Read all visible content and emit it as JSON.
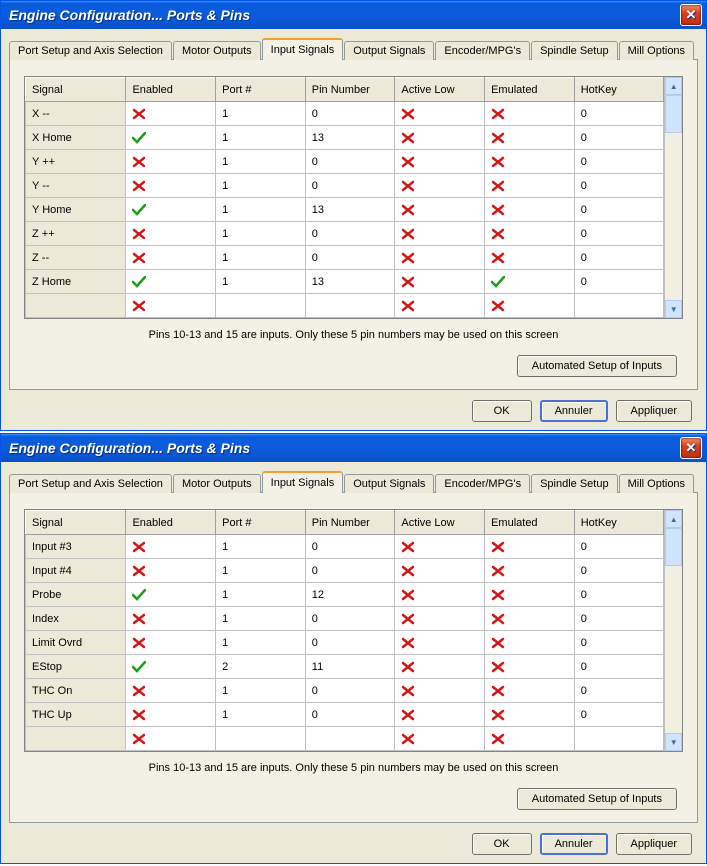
{
  "title": "Engine Configuration... Ports & Pins",
  "tabs": [
    "Port Setup and Axis Selection",
    "Motor Outputs",
    "Input Signals",
    "Output Signals",
    "Encoder/MPG's",
    "Spindle Setup",
    "Mill Options"
  ],
  "activeTab": 2,
  "columns": [
    "Signal",
    "Enabled",
    "Port #",
    "Pin Number",
    "Active Low",
    "Emulated",
    "HotKey"
  ],
  "hint": "Pins 10-13 and 15 are inputs. Only these 5 pin numbers may be used on this screen",
  "autoBtn": "Automated Setup of Inputs",
  "buttons": {
    "ok": "OK",
    "cancel": "Annuler",
    "apply": "Appliquer"
  },
  "colors": {
    "x": "#d01818",
    "check": "#1aa01a"
  },
  "windows": [
    {
      "defaultBtn": "cancel",
      "rows": [
        {
          "signal": "X --",
          "enabled": "x",
          "port": "1",
          "pin": "0",
          "activelow": "x",
          "emulated": "x",
          "hotkey": "0"
        },
        {
          "signal": "X Home",
          "enabled": "check",
          "port": "1",
          "pin": "13",
          "activelow": "x",
          "emulated": "x",
          "hotkey": "0"
        },
        {
          "signal": "Y ++",
          "enabled": "x",
          "port": "1",
          "pin": "0",
          "activelow": "x",
          "emulated": "x",
          "hotkey": "0"
        },
        {
          "signal": "Y --",
          "enabled": "x",
          "port": "1",
          "pin": "0",
          "activelow": "x",
          "emulated": "x",
          "hotkey": "0"
        },
        {
          "signal": "Y Home",
          "enabled": "check",
          "port": "1",
          "pin": "13",
          "activelow": "x",
          "emulated": "x",
          "hotkey": "0"
        },
        {
          "signal": "Z ++",
          "enabled": "x",
          "port": "1",
          "pin": "0",
          "activelow": "x",
          "emulated": "x",
          "hotkey": "0"
        },
        {
          "signal": "Z --",
          "enabled": "x",
          "port": "1",
          "pin": "0",
          "activelow": "x",
          "emulated": "x",
          "hotkey": "0"
        },
        {
          "signal": "Z Home",
          "enabled": "check",
          "port": "1",
          "pin": "13",
          "activelow": "x",
          "emulated": "check",
          "hotkey": "0"
        },
        {
          "signal": "",
          "enabled": "x",
          "port": "",
          "pin": "",
          "activelow": "x",
          "emulated": "x",
          "hotkey": ""
        }
      ]
    },
    {
      "defaultBtn": "cancel",
      "rows": [
        {
          "signal": "Input #3",
          "enabled": "x",
          "port": "1",
          "pin": "0",
          "activelow": "x",
          "emulated": "x",
          "hotkey": "0"
        },
        {
          "signal": "Input #4",
          "enabled": "x",
          "port": "1",
          "pin": "0",
          "activelow": "x",
          "emulated": "x",
          "hotkey": "0"
        },
        {
          "signal": "Probe",
          "enabled": "check",
          "port": "1",
          "pin": "12",
          "activelow": "x",
          "emulated": "x",
          "hotkey": "0"
        },
        {
          "signal": "Index",
          "enabled": "x",
          "port": "1",
          "pin": "0",
          "activelow": "x",
          "emulated": "x",
          "hotkey": "0"
        },
        {
          "signal": "Limit Ovrd",
          "enabled": "x",
          "port": "1",
          "pin": "0",
          "activelow": "x",
          "emulated": "x",
          "hotkey": "0"
        },
        {
          "signal": "EStop",
          "enabled": "check",
          "port": "2",
          "pin": "11",
          "activelow": "x",
          "emulated": "x",
          "hotkey": "0"
        },
        {
          "signal": "THC On",
          "enabled": "x",
          "port": "1",
          "pin": "0",
          "activelow": "x",
          "emulated": "x",
          "hotkey": "0"
        },
        {
          "signal": "THC Up",
          "enabled": "x",
          "port": "1",
          "pin": "0",
          "activelow": "x",
          "emulated": "x",
          "hotkey": "0"
        },
        {
          "signal": "",
          "enabled": "x",
          "port": "",
          "pin": "",
          "activelow": "x",
          "emulated": "x",
          "hotkey": ""
        }
      ]
    }
  ]
}
